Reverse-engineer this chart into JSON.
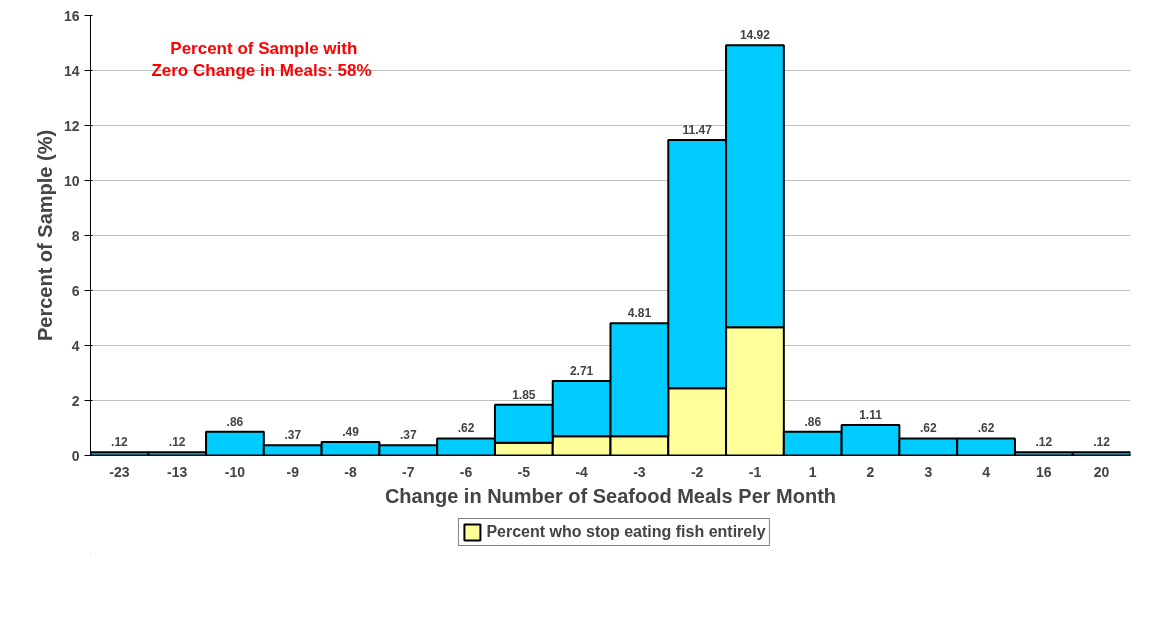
{
  "chart_data": {
    "type": "bar",
    "stacked": true,
    "xlabel": "Change in Number of Seafood Meals Per Month",
    "ylabel": "Percent of Sample (%)",
    "categories": [
      "-23",
      "-13",
      "-10",
      "-9",
      "-8",
      "-7",
      "-6",
      "-5",
      "-4",
      "-3",
      "-2",
      "-1",
      "1",
      "2",
      "3",
      "4",
      "16",
      "20"
    ],
    "series": [
      {
        "name": "Percent who stop eating fish entirely",
        "color": "#ffff99",
        "values": [
          null,
          null,
          null,
          null,
          null,
          null,
          null,
          0.46,
          0.7,
          0.7,
          2.45,
          4.66,
          null,
          null,
          null,
          null,
          null,
          null
        ]
      },
      {
        "color": "#00ccff",
        "values": [
          0.12,
          0.12,
          0.86,
          0.37,
          0.49,
          0.37,
          0.62,
          1.39,
          2.01,
          4.11,
          9.02,
          10.26,
          0.86,
          1.11,
          0.62,
          0.62,
          0.12,
          0.12
        ]
      }
    ],
    "totals": [
      ".12",
      ".12",
      ".86",
      ".37",
      ".49",
      ".37",
      ".62",
      "1.85",
      "2.71",
      "4.81",
      "11.47",
      "14.92",
      ".86",
      "1.11",
      ".62",
      ".62",
      ".12",
      ".12"
    ],
    "annotations": [
      "Percent of Sample with\nZero Change in Meals:  58%"
    ],
    "ylim": [
      0,
      16
    ],
    "yticks": [
      0,
      2,
      4,
      6,
      8,
      10,
      12,
      14,
      16
    ],
    "grid": "y",
    "legend": "bottom"
  }
}
